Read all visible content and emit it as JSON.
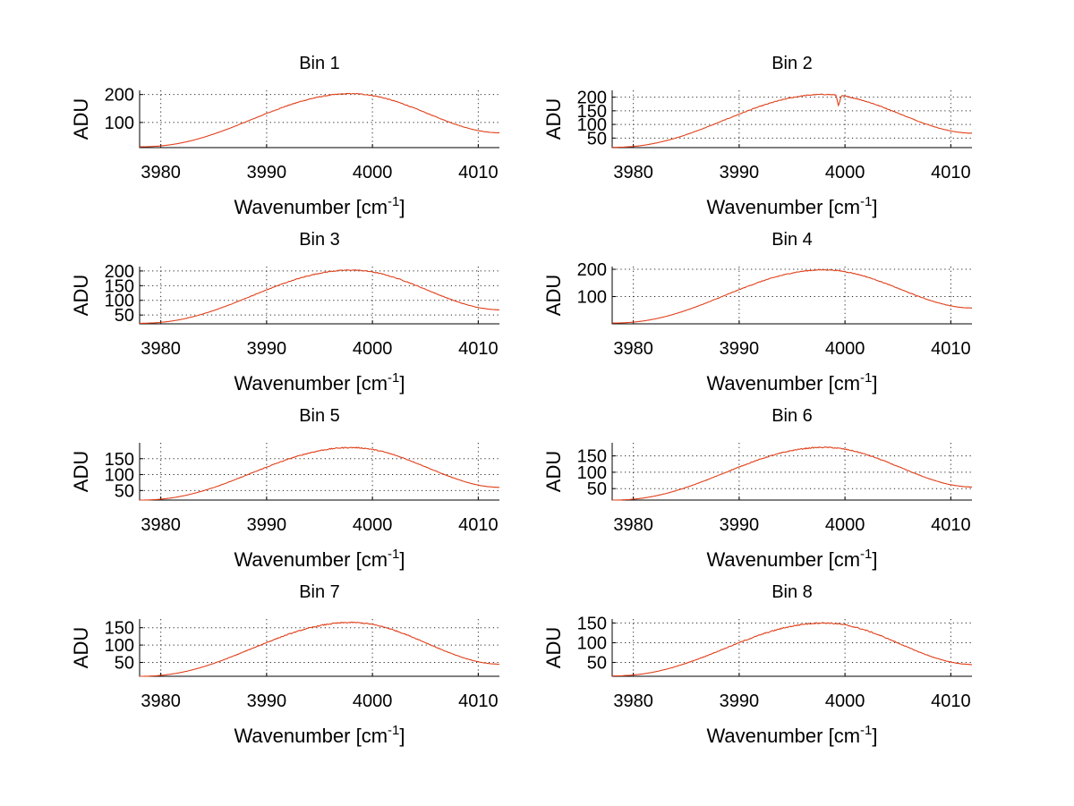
{
  "colors": {
    "trace": "#e0401a",
    "axes": "#000000",
    "background": "#ffffff"
  },
  "chart_data": [
    {
      "type": "line",
      "title": "Bin 1",
      "xlabel": "Wavenumber [cm",
      "xlabel_sup": "-1",
      "xlabel_suffix": "]",
      "ylabel": "ADU",
      "xlim": [
        3978,
        4012
      ],
      "ylim": [
        10,
        215
      ],
      "xticks": [
        3980,
        3990,
        4000,
        4010
      ],
      "yticks": [
        100,
        200
      ],
      "curve": {
        "peak_x": 3998,
        "peak_y": 203,
        "edge_left": 13,
        "edge_right": 63,
        "dip_x": null,
        "dip_depth": 0
      }
    },
    {
      "type": "line",
      "title": "Bin 2",
      "xlabel": "Wavenumber [cm",
      "xlabel_sup": "-1",
      "xlabel_suffix": "]",
      "ylabel": "ADU",
      "xlim": [
        3978,
        4012
      ],
      "ylim": [
        15,
        225
      ],
      "xticks": [
        3980,
        3990,
        4000,
        4010
      ],
      "yticks": [
        50,
        100,
        150,
        200
      ],
      "curve": {
        "peak_x": 3998,
        "peak_y": 210,
        "edge_left": 16,
        "edge_right": 68,
        "dip_x": 3999.4,
        "dip_depth": 40
      }
    },
    {
      "type": "line",
      "title": "Bin 3",
      "xlabel": "Wavenumber [cm",
      "xlabel_sup": "-1",
      "xlabel_suffix": "]",
      "ylabel": "ADU",
      "xlim": [
        3978,
        4012
      ],
      "ylim": [
        20,
        215
      ],
      "xticks": [
        3980,
        3990,
        4000,
        4010
      ],
      "yticks": [
        50,
        100,
        150,
        200
      ],
      "curve": {
        "peak_x": 3998,
        "peak_y": 203,
        "edge_left": 22,
        "edge_right": 68,
        "dip_x": null,
        "dip_depth": 0
      }
    },
    {
      "type": "line",
      "title": "Bin 4",
      "xlabel": "Wavenumber [cm",
      "xlabel_sup": "-1",
      "xlabel_suffix": "]",
      "ylabel": "ADU",
      "xlim": [
        3978,
        4012
      ],
      "ylim": [
        0,
        210
      ],
      "xticks": [
        3980,
        3990,
        4000,
        4010
      ],
      "yticks": [
        100,
        200
      ],
      "curve": {
        "peak_x": 3998,
        "peak_y": 198,
        "edge_left": 3,
        "edge_right": 58,
        "dip_x": null,
        "dip_depth": 0
      }
    },
    {
      "type": "line",
      "title": "Bin 5",
      "xlabel": "Wavenumber [cm",
      "xlabel_sup": "-1",
      "xlabel_suffix": "]",
      "ylabel": "ADU",
      "xlim": [
        3978,
        4012
      ],
      "ylim": [
        20,
        200
      ],
      "xticks": [
        3980,
        3990,
        4000,
        4010
      ],
      "yticks": [
        50,
        100,
        150
      ],
      "curve": {
        "peak_x": 3998,
        "peak_y": 185,
        "edge_left": 20,
        "edge_right": 60,
        "dip_x": null,
        "dip_depth": 0
      }
    },
    {
      "type": "line",
      "title": "Bin 6",
      "xlabel": "Wavenumber [cm",
      "xlabel_sup": "-1",
      "xlabel_suffix": "]",
      "ylabel": "ADU",
      "xlim": [
        3978,
        4012
      ],
      "ylim": [
        15,
        190
      ],
      "xticks": [
        3980,
        3990,
        4000,
        4010
      ],
      "yticks": [
        50,
        100,
        150
      ],
      "curve": {
        "peak_x": 3998,
        "peak_y": 176,
        "edge_left": 15,
        "edge_right": 55,
        "dip_x": null,
        "dip_depth": 0
      }
    },
    {
      "type": "line",
      "title": "Bin 7",
      "xlabel": "Wavenumber [cm",
      "xlabel_sup": "-1",
      "xlabel_suffix": "]",
      "ylabel": "ADU",
      "xlim": [
        3978,
        4012
      ],
      "ylim": [
        10,
        175
      ],
      "xticks": [
        3980,
        3990,
        4000,
        4010
      ],
      "yticks": [
        50,
        100,
        150
      ],
      "curve": {
        "peak_x": 3998,
        "peak_y": 165,
        "edge_left": 10,
        "edge_right": 45,
        "dip_x": null,
        "dip_depth": 0
      }
    },
    {
      "type": "line",
      "title": "Bin 8",
      "xlabel": "Wavenumber [cm",
      "xlabel_sup": "-1",
      "xlabel_suffix": "]",
      "ylabel": "ADU",
      "xlim": [
        3978,
        4012
      ],
      "ylim": [
        15,
        160
      ],
      "xticks": [
        3980,
        3990,
        4000,
        4010
      ],
      "yticks": [
        50,
        100,
        150
      ],
      "curve": {
        "peak_x": 3998,
        "peak_y": 150,
        "edge_left": 16,
        "edge_right": 45,
        "dip_x": null,
        "dip_depth": 0
      }
    }
  ]
}
